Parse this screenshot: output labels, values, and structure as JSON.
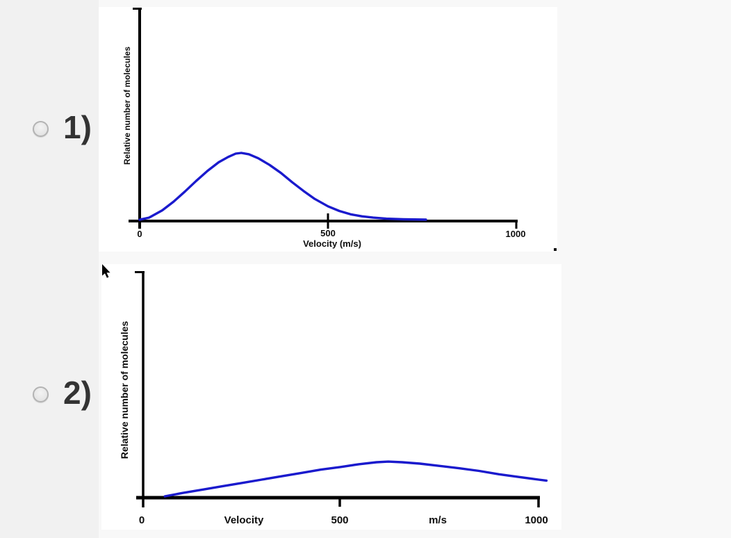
{
  "page": {
    "background_color": "#f1f1f1",
    "content_background_color": "#f8f8f8",
    "panel_color": "#ffffff"
  },
  "question_options": [
    {
      "label": "1)",
      "selected": false,
      "after_text": ".",
      "chart": {
        "type": "line",
        "title": "",
        "ylabel": "Relative number of molecules",
        "xlabel": "Velocity (m/s)",
        "x_ticks": {
          "zero": "0",
          "five_hundred": "500",
          "thousand": "1000"
        },
        "xlim": [
          0,
          1000
        ],
        "grid": false,
        "axis_color": "#000000",
        "curve_color": "#1a1acd",
        "y_unit": "relative height (option-1 curve peak = 1.0)",
        "series": [
          {
            "name": "curve",
            "points": [
              [
                0,
                0
              ],
              [
                25,
                0.03
              ],
              [
                60,
                0.14
              ],
              [
                90,
                0.27
              ],
              [
                120,
                0.42
              ],
              [
                150,
                0.58
              ],
              [
                180,
                0.73
              ],
              [
                210,
                0.86
              ],
              [
                235,
                0.94
              ],
              [
                255,
                0.99
              ],
              [
                270,
                1.0
              ],
              [
                290,
                0.98
              ],
              [
                315,
                0.92
              ],
              [
                345,
                0.82
              ],
              [
                375,
                0.7
              ],
              [
                405,
                0.56
              ],
              [
                435,
                0.43
              ],
              [
                465,
                0.31
              ],
              [
                500,
                0.2
              ],
              [
                530,
                0.13
              ],
              [
                560,
                0.08
              ],
              [
                590,
                0.05
              ],
              [
                620,
                0.03
              ],
              [
                655,
                0.015
              ],
              [
                700,
                0.005
              ],
              [
                760,
                0
              ]
            ]
          }
        ]
      }
    },
    {
      "label": "2)",
      "selected": false,
      "chart": {
        "type": "line",
        "title": "",
        "ylabel": "Relative number of molecules",
        "x_axis_texts": {
          "zero": "0",
          "velocity_word": "Velocity",
          "five_hundred": "500",
          "units": "m/s",
          "thousand": "1000"
        },
        "xlim": [
          0,
          1000
        ],
        "grid": false,
        "axis_color": "#000000",
        "curve_color": "#1a1acd",
        "y_unit": "relative height (option-1 curve peak = 1.0)",
        "series": [
          {
            "name": "curve",
            "points": [
              [
                55,
                0
              ],
              [
                100,
                0.05
              ],
              [
                150,
                0.1
              ],
              [
                200,
                0.15
              ],
              [
                250,
                0.2
              ],
              [
                300,
                0.25
              ],
              [
                350,
                0.3
              ],
              [
                400,
                0.35
              ],
              [
                450,
                0.4
              ],
              [
                500,
                0.44
              ],
              [
                545,
                0.48
              ],
              [
                590,
                0.51
              ],
              [
                620,
                0.52
              ],
              [
                655,
                0.51
              ],
              [
                700,
                0.49
              ],
              [
                750,
                0.455
              ],
              [
                800,
                0.42
              ],
              [
                850,
                0.38
              ],
              [
                900,
                0.33
              ],
              [
                950,
                0.29
              ],
              [
                1000,
                0.25
              ],
              [
                1020,
                0.235
              ]
            ]
          }
        ]
      }
    }
  ],
  "cursor": {
    "visible": true,
    "location": "over option-2 chart near curve top, left of the 500 tick"
  }
}
